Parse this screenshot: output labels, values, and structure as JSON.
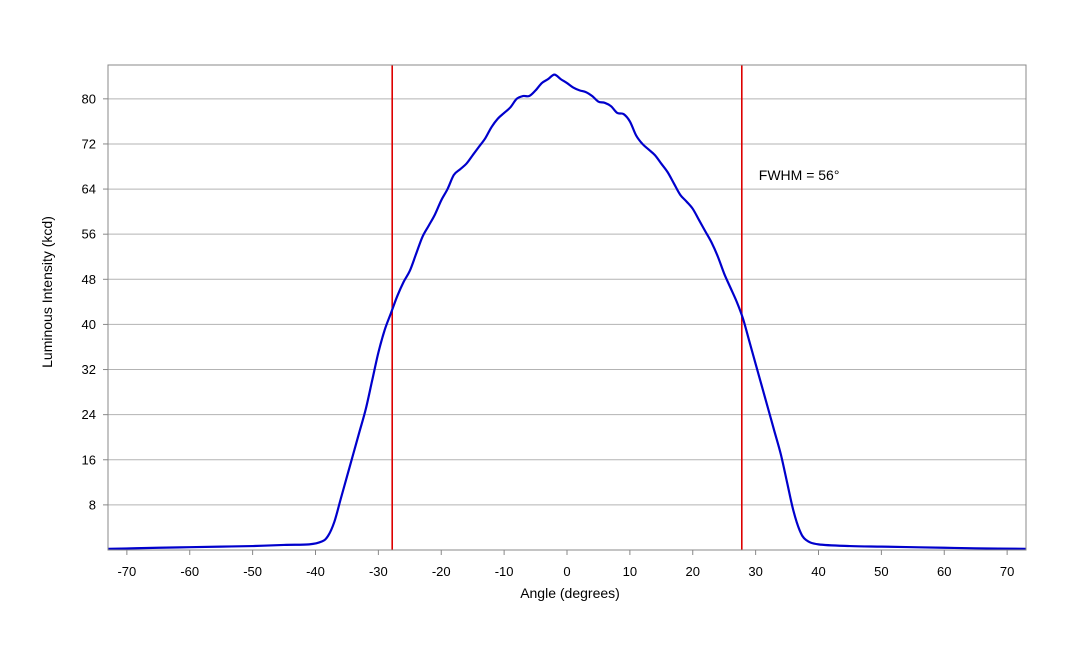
{
  "chart_data": {
    "type": "line",
    "title": "",
    "xlabel": "Angle (degrees)",
    "ylabel": "Luminous Intensity (kcd)",
    "xlim": [
      -73,
      73
    ],
    "ylim": [
      0,
      86
    ],
    "x_ticks": [
      -70,
      -60,
      -50,
      -40,
      -30,
      -20,
      -10,
      0,
      10,
      20,
      30,
      40,
      50,
      60,
      70
    ],
    "y_ticks": [
      8,
      16,
      24,
      32,
      40,
      48,
      56,
      64,
      72,
      80
    ],
    "grid": "horizontal",
    "legend": "none",
    "series": [
      {
        "color": "#0000cc",
        "points": [
          [
            -73,
            0.2
          ],
          [
            -65,
            0.4
          ],
          [
            -60,
            0.5
          ],
          [
            -55,
            0.6
          ],
          [
            -50,
            0.7
          ],
          [
            -45,
            0.9
          ],
          [
            -41,
            1.0
          ],
          [
            -39,
            1.5
          ],
          [
            -38,
            2.5
          ],
          [
            -37,
            5
          ],
          [
            -36,
            9
          ],
          [
            -35,
            13
          ],
          [
            -34,
            17
          ],
          [
            -33,
            21
          ],
          [
            -32,
            25
          ],
          [
            -31,
            30
          ],
          [
            -30,
            35
          ],
          [
            -29,
            39
          ],
          [
            -28,
            42
          ],
          [
            -27,
            45
          ],
          [
            -26,
            47.5
          ],
          [
            -25,
            49.5
          ],
          [
            -24,
            52.5
          ],
          [
            -23,
            55.5
          ],
          [
            -22,
            57.5
          ],
          [
            -21,
            59.5
          ],
          [
            -20,
            62
          ],
          [
            -19,
            64
          ],
          [
            -18,
            66.5
          ],
          [
            -17,
            67.5
          ],
          [
            -16,
            68.5
          ],
          [
            -15,
            70
          ],
          [
            -14,
            71.5
          ],
          [
            -13,
            73
          ],
          [
            -12,
            75
          ],
          [
            -11,
            76.5
          ],
          [
            -10,
            77.5
          ],
          [
            -9,
            78.5
          ],
          [
            -8,
            80
          ],
          [
            -7,
            80.5
          ],
          [
            -6,
            80.5
          ],
          [
            -5,
            81.5
          ],
          [
            -4,
            82.8
          ],
          [
            -3,
            83.5
          ],
          [
            -2,
            84.3
          ],
          [
            -1,
            83.5
          ],
          [
            0,
            82.8
          ],
          [
            1,
            82
          ],
          [
            2,
            81.5
          ],
          [
            3,
            81.2
          ],
          [
            4,
            80.5
          ],
          [
            5,
            79.5
          ],
          [
            6,
            79.3
          ],
          [
            7,
            78.7
          ],
          [
            8,
            77.5
          ],
          [
            9,
            77.3
          ],
          [
            10,
            76
          ],
          [
            11,
            73.5
          ],
          [
            12,
            72
          ],
          [
            13,
            71
          ],
          [
            14,
            70
          ],
          [
            15,
            68.5
          ],
          [
            16,
            67
          ],
          [
            17,
            65
          ],
          [
            18,
            63
          ],
          [
            19,
            61.8
          ],
          [
            20,
            60.5
          ],
          [
            21,
            58.5
          ],
          [
            22,
            56.5
          ],
          [
            23,
            54.5
          ],
          [
            24,
            52
          ],
          [
            25,
            49
          ],
          [
            26,
            46.5
          ],
          [
            27,
            44
          ],
          [
            28,
            41
          ],
          [
            29,
            37
          ],
          [
            30,
            33
          ],
          [
            31,
            29
          ],
          [
            32,
            25
          ],
          [
            33,
            21
          ],
          [
            34,
            17
          ],
          [
            35,
            12
          ],
          [
            36,
            7
          ],
          [
            37,
            3.5
          ],
          [
            38,
            1.8
          ],
          [
            40,
            1.0
          ],
          [
            45,
            0.7
          ],
          [
            50,
            0.6
          ],
          [
            55,
            0.5
          ],
          [
            60,
            0.4
          ],
          [
            65,
            0.3
          ],
          [
            73,
            0.2
          ]
        ]
      }
    ],
    "markers": [
      {
        "x": -27.8,
        "color": "#dd0000"
      },
      {
        "x": 27.8,
        "color": "#dd0000"
      }
    ],
    "annotations": [
      {
        "text": "FWHM = 56°",
        "x": 30.5,
        "y": 66.5
      }
    ],
    "colors": {
      "plot_border": "#888888",
      "grid": "#b3b3b3"
    }
  }
}
